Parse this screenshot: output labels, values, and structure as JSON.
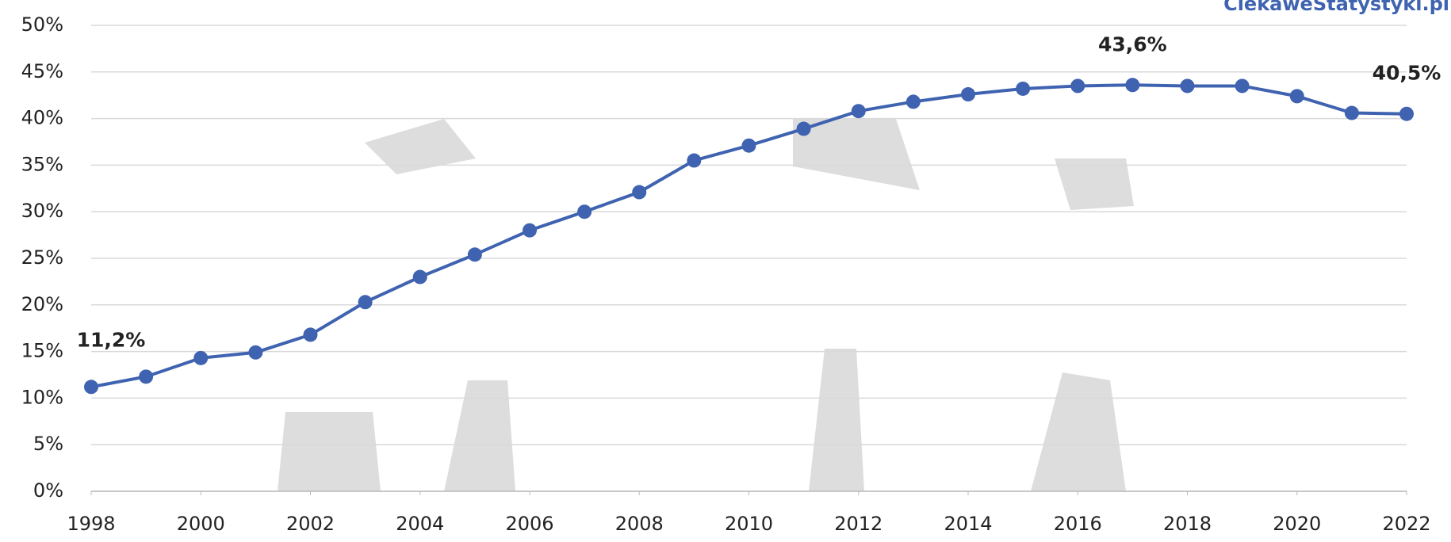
{
  "chart_data": {
    "type": "line",
    "watermark": "CiekaweStatystyki.pl",
    "x": [
      1998,
      1999,
      2000,
      2001,
      2002,
      2003,
      2004,
      2005,
      2006,
      2007,
      2008,
      2009,
      2010,
      2011,
      2012,
      2013,
      2014,
      2015,
      2016,
      2017,
      2018,
      2019,
      2020,
      2021,
      2022
    ],
    "series": [
      {
        "color": "#3f63b0",
        "values": [
          11.2,
          12.3,
          14.3,
          14.9,
          16.8,
          20.3,
          23.0,
          25.4,
          28.0,
          30.0,
          32.1,
          35.5,
          37.1,
          38.9,
          40.8,
          41.8,
          42.6,
          43.2,
          43.5,
          43.6,
          43.5,
          43.5,
          42.4,
          40.6,
          40.5
        ],
        "value_labels": [
          "11,2%",
          null,
          null,
          null,
          null,
          null,
          null,
          null,
          null,
          null,
          null,
          null,
          null,
          null,
          null,
          null,
          null,
          null,
          null,
          "43,6%",
          null,
          null,
          null,
          null,
          "40,5%"
        ]
      }
    ],
    "xlim": [
      1998,
      2022
    ],
    "xticks": [
      1998,
      2000,
      2002,
      2004,
      2006,
      2008,
      2010,
      2012,
      2014,
      2016,
      2018,
      2020,
      2022
    ],
    "ylim": [
      0,
      50
    ],
    "yticks": [
      {
        "value": 0,
        "label": "0%"
      },
      {
        "value": 5,
        "label": "5%"
      },
      {
        "value": 10,
        "label": "10%"
      },
      {
        "value": 15,
        "label": "15%"
      },
      {
        "value": 20,
        "label": "20%"
      },
      {
        "value": 25,
        "label": "25%"
      },
      {
        "value": 30,
        "label": "30%"
      },
      {
        "value": 35,
        "label": "35%"
      },
      {
        "value": 40,
        "label": "40%"
      },
      {
        "value": 45,
        "label": "45%"
      },
      {
        "value": 50,
        "label": "50%"
      }
    ],
    "grid": true
  }
}
